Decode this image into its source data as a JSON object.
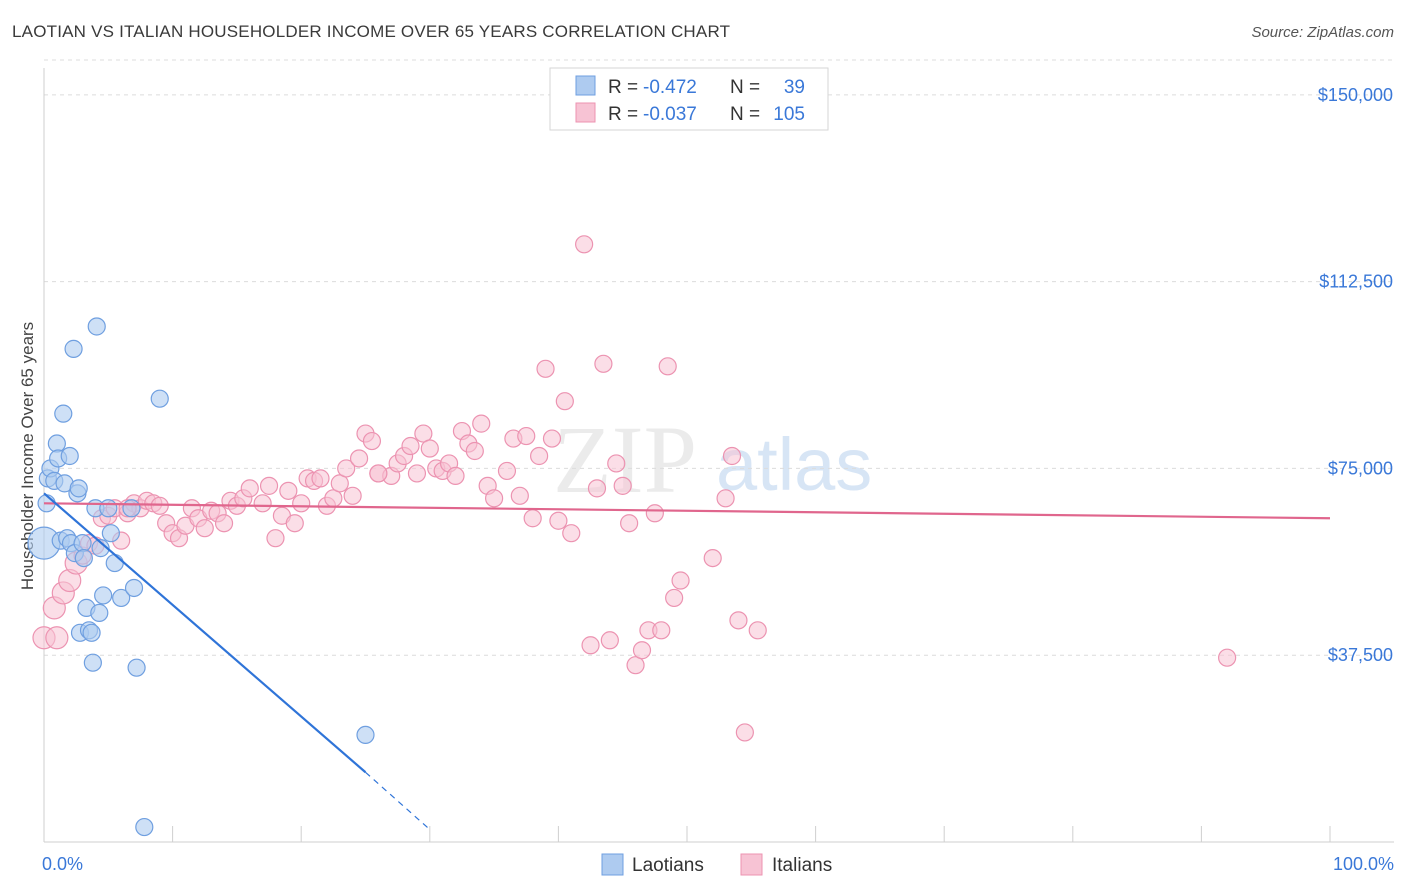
{
  "title": "LAOTIAN VS ITALIAN HOUSEHOLDER INCOME OVER 65 YEARS CORRELATION CHART",
  "source": "Source: ZipAtlas.com",
  "watermark": {
    "zip": "ZIP",
    "atlas": "atlas"
  },
  "colors": {
    "laotian_fill": "#aecbf0",
    "laotian_stroke": "#6f9fe0",
    "laotian_line": "#2f74d8",
    "italian_fill": "#f7c3d4",
    "italian_stroke": "#ec93b1",
    "italian_line": "#e0668d",
    "tick_label": "#3a78d8",
    "grid": "#dcdcdc"
  },
  "legend": {
    "row1": {
      "r_label": "R =",
      "r_value": "-0.472",
      "n_label": "N =",
      "n_value": "39"
    },
    "row2": {
      "r_label": "R =",
      "r_value": "-0.037",
      "n_label": "N =",
      "n_value": "105"
    }
  },
  "chart_data": {
    "type": "scatter",
    "title": "LAOTIAN VS ITALIAN HOUSEHOLDER INCOME OVER 65 YEARS CORRELATION CHART",
    "xlabel": "",
    "ylabel": "Householder Income Over 65 years",
    "xlim": [
      0,
      100
    ],
    "ylim": [
      0,
      157000
    ],
    "x_tick_labels": [
      "0.0%",
      "100.0%"
    ],
    "y_ticks": [
      37500,
      75000,
      112500,
      150000
    ],
    "y_tick_labels": [
      "$37,500",
      "$75,000",
      "$112,500",
      "$150,000"
    ],
    "grid": true,
    "legend_position": "bottom-center",
    "series": [
      {
        "name": "Laotians",
        "trend": {
          "x0": 0,
          "y0": 70000,
          "x1": 25,
          "y1": 14000,
          "dashed_to_x": 30,
          "dashed_to_y": 2500
        },
        "points": [
          [
            0.0,
            60000
          ],
          [
            0.2,
            68000
          ],
          [
            0.3,
            73000
          ],
          [
            0.5,
            75000
          ],
          [
            0.8,
            72500
          ],
          [
            1.0,
            80000
          ],
          [
            1.1,
            77000
          ],
          [
            1.3,
            60500
          ],
          [
            1.5,
            86000
          ],
          [
            1.6,
            72000
          ],
          [
            1.8,
            61000
          ],
          [
            2.0,
            77500
          ],
          [
            2.1,
            60000
          ],
          [
            2.3,
            99000
          ],
          [
            2.4,
            58000
          ],
          [
            2.6,
            70000
          ],
          [
            2.7,
            71000
          ],
          [
            2.8,
            42000
          ],
          [
            3.0,
            60000
          ],
          [
            3.1,
            57000
          ],
          [
            3.3,
            47000
          ],
          [
            3.5,
            42500
          ],
          [
            3.7,
            42000
          ],
          [
            3.8,
            36000
          ],
          [
            4.0,
            67000
          ],
          [
            4.1,
            103500
          ],
          [
            4.3,
            46000
          ],
          [
            4.4,
            59000
          ],
          [
            4.6,
            49500
          ],
          [
            5.0,
            67000
          ],
          [
            5.2,
            62000
          ],
          [
            5.5,
            56000
          ],
          [
            6.0,
            49000
          ],
          [
            6.8,
            67000
          ],
          [
            7.0,
            51000
          ],
          [
            7.2,
            35000
          ],
          [
            7.8,
            3000
          ],
          [
            9.0,
            89000
          ],
          [
            25.0,
            21500
          ]
        ]
      },
      {
        "name": "Italians",
        "trend": {
          "x0": 0,
          "y0": 68000,
          "x1": 100,
          "y1": 65000
        },
        "points": [
          [
            0.0,
            41000
          ],
          [
            0.8,
            47000
          ],
          [
            1.5,
            50000
          ],
          [
            2.0,
            52500
          ],
          [
            2.5,
            56000
          ],
          [
            3.0,
            57500
          ],
          [
            3.5,
            60000
          ],
          [
            4.0,
            59500
          ],
          [
            4.5,
            65000
          ],
          [
            5.0,
            65500
          ],
          [
            5.5,
            67000
          ],
          [
            6.0,
            60500
          ],
          [
            6.5,
            66000
          ],
          [
            7.0,
            68000
          ],
          [
            7.5,
            67000
          ],
          [
            8.0,
            68500
          ],
          [
            8.5,
            68000
          ],
          [
            9.0,
            67500
          ],
          [
            9.5,
            64000
          ],
          [
            10.0,
            62000
          ],
          [
            10.5,
            61000
          ],
          [
            11.0,
            63500
          ],
          [
            11.5,
            67000
          ],
          [
            12.0,
            65000
          ],
          [
            12.5,
            63000
          ],
          [
            13.0,
            66500
          ],
          [
            13.5,
            66000
          ],
          [
            14.0,
            64000
          ],
          [
            14.5,
            68500
          ],
          [
            15.0,
            67500
          ],
          [
            15.5,
            69000
          ],
          [
            16.0,
            71000
          ],
          [
            17.0,
            68000
          ],
          [
            17.5,
            71500
          ],
          [
            18.0,
            61000
          ],
          [
            18.5,
            65500
          ],
          [
            19.0,
            70500
          ],
          [
            19.5,
            64000
          ],
          [
            20.0,
            68000
          ],
          [
            20.5,
            73000
          ],
          [
            21.0,
            72500
          ],
          [
            21.5,
            73000
          ],
          [
            22.0,
            67500
          ],
          [
            22.5,
            69000
          ],
          [
            23.0,
            72000
          ],
          [
            23.5,
            75000
          ],
          [
            24.0,
            69500
          ],
          [
            24.5,
            77000
          ],
          [
            25.0,
            82000
          ],
          [
            25.5,
            80500
          ],
          [
            26.0,
            74000
          ],
          [
            27.0,
            73500
          ],
          [
            27.5,
            76000
          ],
          [
            28.0,
            77500
          ],
          [
            28.5,
            79500
          ],
          [
            29.0,
            74000
          ],
          [
            29.5,
            82000
          ],
          [
            30.0,
            79000
          ],
          [
            30.5,
            75000
          ],
          [
            31.0,
            74500
          ],
          [
            31.5,
            76000
          ],
          [
            32.0,
            73500
          ],
          [
            32.5,
            82500
          ],
          [
            33.0,
            80000
          ],
          [
            33.5,
            78500
          ],
          [
            34.0,
            84000
          ],
          [
            34.5,
            71500
          ],
          [
            35.0,
            69000
          ],
          [
            36.0,
            74500
          ],
          [
            36.5,
            81000
          ],
          [
            37.0,
            69500
          ],
          [
            37.5,
            81500
          ],
          [
            38.0,
            65000
          ],
          [
            38.5,
            77500
          ],
          [
            39.0,
            95000
          ],
          [
            39.5,
            81000
          ],
          [
            40.0,
            64500
          ],
          [
            40.5,
            88500
          ],
          [
            41.0,
            62000
          ],
          [
            42.0,
            120000
          ],
          [
            42.5,
            39500
          ],
          [
            43.0,
            71000
          ],
          [
            43.5,
            96000
          ],
          [
            44.0,
            40500
          ],
          [
            44.5,
            76000
          ],
          [
            45.0,
            71500
          ],
          [
            45.5,
            64000
          ],
          [
            46.0,
            35500
          ],
          [
            46.5,
            38500
          ],
          [
            47.0,
            42500
          ],
          [
            47.5,
            66000
          ],
          [
            48.0,
            42500
          ],
          [
            48.5,
            95500
          ],
          [
            49.0,
            49000
          ],
          [
            49.5,
            52500
          ],
          [
            52.0,
            57000
          ],
          [
            53.0,
            69000
          ],
          [
            53.5,
            77500
          ],
          [
            54.0,
            44500
          ],
          [
            54.5,
            22000
          ],
          [
            55.5,
            42500
          ],
          [
            92.0,
            37000
          ],
          [
            1.0,
            41000
          ],
          [
            6.5,
            67000
          ],
          [
            26.0,
            74000
          ]
        ]
      }
    ]
  },
  "bottom_legend": {
    "laotians": "Laotians",
    "italians": "Italians"
  }
}
